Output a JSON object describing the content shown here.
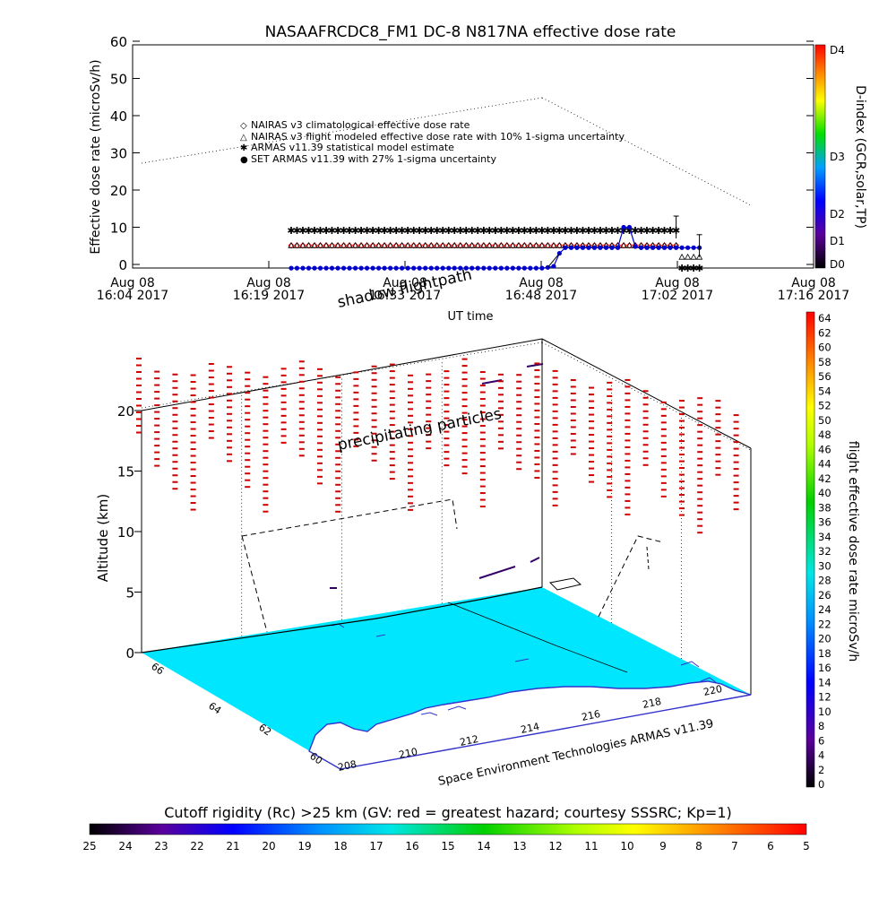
{
  "top_chart": {
    "title": "NASAAFRCDC8_FM1 DC-8   N817NA effective dose rate",
    "ylabel": "Effective dose rate (microSv/h)",
    "right_axis_label": "D-index (GCR,solar,TP)",
    "right_ticks": [
      "D4",
      "D3",
      "D2",
      "D1",
      "D0"
    ],
    "xlabel": "UT time",
    "x_ticks": [
      {
        "line1": "Aug 08",
        "line2": "16:04 2017"
      },
      {
        "line1": "Aug 08",
        "line2": "16:19 2017"
      },
      {
        "line1": "Aug 08",
        "line2": "16:33 2017"
      },
      {
        "line1": "Aug 08",
        "line2": "16:48 2017"
      },
      {
        "line1": "Aug 08",
        "line2": "17:02 2017"
      },
      {
        "line1": "Aug 08",
        "line2": "17:16 2017"
      }
    ],
    "legend": [
      {
        "symbol": "◇",
        "color": "#ff0000",
        "label": "NAIRAS v3 climatological effective dose rate"
      },
      {
        "symbol": "△",
        "color": "#000000",
        "label": "NAIRAS v3 flight modeled effective dose rate with 10% 1-sigma uncertainty"
      },
      {
        "symbol": "✱",
        "color": "#00cc00",
        "label": "ARMAS v11.39 statistical model estimate"
      },
      {
        "symbol": "●",
        "color": "#0000cc",
        "label": "SET ARMAS v11.39 with 27% 1-sigma uncertainty"
      }
    ],
    "overlay_text": "shadow flightpath"
  },
  "chart_data": [
    {
      "type": "scatter",
      "title": "NASAAFRCDC8_FM1 DC-8   N817NA effective dose rate",
      "xlabel": "UT time",
      "ylabel": "Effective dose rate (microSv/h)",
      "xlim": [
        "16:04",
        "17:16"
      ],
      "ylim": [
        0,
        60
      ],
      "y_ticks": [
        0,
        10,
        20,
        30,
        40,
        50,
        60
      ],
      "series": [
        {
          "name": "NAIRAS v3 climatological effective dose rate",
          "color": "#ff0000",
          "x": [
            16.77,
            17.38,
            18.0,
            18.62,
            19.23,
            19.85,
            20.47,
            21.08,
            21.7,
            22.32,
            22.93,
            23.55,
            24.17,
            24.78,
            25.4,
            26.02,
            26.63,
            27.25,
            27.87,
            28.48,
            29.1,
            29.72,
            30.33,
            30.95,
            31.57,
            32.18,
            32.8,
            33.42,
            34.03,
            34.65,
            35.27,
            35.88,
            36.5,
            37.12,
            37.73,
            38.35,
            38.97,
            39.58,
            40.2,
            40.82,
            41.43,
            42.05,
            42.67,
            43.28,
            43.9,
            44.52,
            45.13,
            45.75,
            46.37,
            46.98,
            47.6,
            48.22,
            48.83,
            49.45,
            50.07,
            50.68,
            51.3,
            51.92,
            52.53,
            53.15,
            53.77,
            54.38,
            55.0,
            55.62,
            56.23,
            56.85,
            57.47
          ],
          "y": [
            5.1,
            5.1,
            5.1,
            5.1,
            5.1,
            5.1,
            5.1,
            5.1,
            5.1,
            5.1,
            5.1,
            5.1,
            5.1,
            5.1,
            5.1,
            5.1,
            5.1,
            5.1,
            5.1,
            5.1,
            5.1,
            5.1,
            5.1,
            5.1,
            5.1,
            5.1,
            5.1,
            5.1,
            5.1,
            5.1,
            5.1,
            5.1,
            5.1,
            5.1,
            5.1,
            5.1,
            5.1,
            5.1,
            5.1,
            5.1,
            5.1,
            5.1,
            5.1,
            5.1,
            5.1,
            5.1,
            5.1,
            5.1,
            5.1,
            5.1,
            5.1,
            5.1,
            5.1,
            5.1,
            5.1,
            5.1,
            5.1,
            5.1,
            5.1,
            5.1,
            5.1,
            5.1,
            5.1,
            5.1,
            5.1,
            5.1,
            5.1
          ]
        },
        {
          "name": "NAIRAS v3 flight modeled effective dose rate with 10% 1-sigma uncertainty",
          "color": "#000000",
          "x": [
            16.77,
            17.38,
            18.0,
            18.62,
            19.23,
            19.85,
            20.47,
            21.08,
            21.7,
            22.32,
            22.93,
            23.55,
            24.17,
            24.78,
            25.4,
            26.02,
            26.63,
            27.25,
            27.87,
            28.48,
            29.1,
            29.72,
            30.33,
            30.95,
            31.57,
            32.18,
            32.8,
            33.42,
            34.03,
            34.65,
            35.27,
            35.88,
            36.5,
            37.12,
            37.73,
            38.35,
            38.97,
            39.58,
            40.2,
            40.82,
            41.43,
            42.05,
            42.67,
            43.28,
            43.9,
            44.52,
            45.13,
            45.75,
            46.37,
            46.98,
            47.6,
            48.22,
            48.83,
            49.45,
            50.07,
            50.68,
            51.3,
            51.92,
            52.53,
            53.15,
            53.77,
            54.38,
            55.0,
            55.62,
            56.23,
            56.85,
            57.47,
            58.08,
            58.7,
            59.32,
            59.93
          ],
          "y": [
            5.1,
            5.1,
            5.1,
            5.1,
            5.1,
            5.1,
            5.1,
            5.1,
            5.1,
            5.1,
            5.1,
            5.1,
            5.1,
            5.1,
            5.1,
            5.1,
            5.1,
            5.1,
            5.1,
            5.1,
            5.1,
            5.1,
            5.1,
            5.1,
            5.1,
            5.1,
            5.1,
            5.1,
            5.1,
            5.1,
            5.1,
            5.1,
            5.1,
            5.1,
            5.1,
            5.1,
            5.1,
            5.1,
            5.1,
            5.1,
            5.1,
            5.1,
            5.1,
            5.1,
            5.1,
            5.1,
            5.1,
            5.1,
            5.1,
            5.1,
            5.1,
            5.1,
            5.1,
            5.1,
            5.1,
            5.1,
            5.1,
            5.1,
            5.1,
            5.1,
            5.1,
            5.1,
            5.1,
            5.1,
            5.1,
            5.1,
            5.1,
            2.0,
            2.0,
            2.0,
            2.0
          ]
        },
        {
          "name": "ARMAS v11.39 statistical model estimate",
          "color": "#00cc00",
          "x": [
            16.77,
            17.38,
            18.0,
            18.62,
            19.23,
            19.85,
            20.47,
            21.08,
            21.7,
            22.32,
            22.93,
            23.55,
            24.17,
            24.78,
            25.4,
            26.02,
            26.63,
            27.25,
            27.87,
            28.48,
            29.1,
            29.72,
            30.33,
            30.95,
            31.57,
            32.18,
            32.8,
            33.42,
            34.03,
            34.65,
            35.27,
            35.88,
            36.5,
            37.12,
            37.73,
            38.35,
            38.97,
            39.58,
            40.2,
            40.82,
            41.43,
            42.05,
            42.67,
            43.28,
            43.9,
            44.52,
            45.13,
            45.75,
            46.37,
            46.98,
            47.6,
            48.22,
            48.83,
            49.45,
            50.07,
            50.68,
            51.3,
            51.92,
            52.53,
            53.15,
            53.77,
            54.38,
            55.0,
            55.62,
            56.23,
            56.85,
            57.47,
            58.08,
            58.7,
            59.32,
            59.93
          ],
          "y": [
            9.2,
            9.2,
            9.2,
            9.2,
            9.2,
            9.2,
            9.2,
            9.2,
            9.2,
            9.2,
            9.2,
            9.2,
            9.2,
            9.2,
            9.2,
            9.2,
            9.2,
            9.2,
            9.2,
            9.2,
            9.2,
            9.2,
            9.2,
            9.2,
            9.2,
            9.2,
            9.2,
            9.2,
            9.2,
            9.2,
            9.2,
            9.2,
            9.2,
            9.2,
            9.2,
            9.2,
            9.2,
            9.2,
            9.2,
            9.2,
            9.2,
            9.2,
            9.2,
            9.2,
            9.2,
            9.2,
            9.2,
            9.2,
            9.2,
            9.2,
            9.2,
            9.2,
            9.2,
            9.2,
            9.2,
            9.2,
            9.2,
            9.2,
            9.2,
            9.2,
            9.2,
            9.2,
            9.2,
            9.2,
            9.2,
            9.2,
            9.2,
            -1.0,
            -1.0,
            -1.0,
            -1.0
          ]
        },
        {
          "name": "SET ARMAS v11.39 with 27% 1-sigma uncertainty",
          "color": "#0000cc",
          "x": [
            16.77,
            17.38,
            18.0,
            18.62,
            19.23,
            19.85,
            20.47,
            21.08,
            21.7,
            22.32,
            22.93,
            23.55,
            24.17,
            24.78,
            25.4,
            26.02,
            26.63,
            27.25,
            27.87,
            28.48,
            29.1,
            29.72,
            30.33,
            30.95,
            31.57,
            32.18,
            32.8,
            33.42,
            34.03,
            34.65,
            35.27,
            35.88,
            36.5,
            37.12,
            37.73,
            38.35,
            38.97,
            39.58,
            40.2,
            40.82,
            41.43,
            42.05,
            42.67,
            43.28,
            43.9,
            44.52,
            45.13,
            45.75,
            46.37,
            46.98,
            47.6,
            48.22,
            48.83,
            49.45,
            50.07,
            50.68,
            51.3,
            51.92,
            52.53,
            53.15,
            53.77,
            54.38,
            55.0,
            55.62,
            56.23,
            56.85,
            57.47,
            58.08,
            58.7,
            59.32,
            59.93
          ],
          "y": [
            -1.0,
            -1.0,
            -1.0,
            -1.0,
            -1.0,
            -1.0,
            -1.0,
            -1.0,
            -1.0,
            -1.0,
            -1.0,
            -1.0,
            -1.0,
            -1.0,
            -1.0,
            -1.0,
            -1.0,
            -1.0,
            -1.0,
            -1.0,
            -1.0,
            -1.0,
            -1.0,
            -1.0,
            -1.0,
            -1.0,
            -1.0,
            -1.0,
            -1.0,
            -1.0,
            -1.0,
            -1.0,
            -1.0,
            -1.0,
            -1.0,
            -1.0,
            -1.0,
            -1.0,
            -1.0,
            -1.0,
            -1.0,
            -1.0,
            -1.0,
            -1.0,
            -0.8,
            -0.5,
            3.0,
            4.5,
            4.5,
            4.5,
            4.5,
            4.5,
            4.5,
            4.5,
            4.5,
            4.5,
            4.5,
            10.0,
            10.0,
            4.8,
            4.5,
            4.5,
            4.5,
            4.5,
            4.5,
            4.5,
            4.5,
            4.5,
            4.5,
            4.5,
            4.5
          ]
        }
      ]
    },
    {
      "type": "heatmap",
      "xlabel": "",
      "ylabel": "Altitude (km)",
      "zlim": [
        0,
        25
      ],
      "z_ticks": [
        0,
        5,
        10,
        15,
        20
      ],
      "lat_ticks": [
        "66",
        "64",
        "62",
        "60"
      ],
      "lon_ticks": [
        "208",
        "210",
        "212",
        "214",
        "216",
        "218",
        "220"
      ],
      "annotations": [
        "precipitating particles",
        "Space Environment Technologies ARMAS v11.39"
      ]
    }
  ],
  "right_colorbar": {
    "label": "flight effective dose rate microSv/h",
    "ticks": [
      "64",
      "62",
      "60",
      "58",
      "56",
      "54",
      "52",
      "50",
      "48",
      "46",
      "44",
      "42",
      "40",
      "38",
      "36",
      "34",
      "32",
      "30",
      "28",
      "26",
      "24",
      "22",
      "20",
      "18",
      "16",
      "14",
      "12",
      "10",
      "8",
      "6",
      "4",
      "2",
      "0"
    ]
  },
  "bottom_colorbar": {
    "title": "Cutoff rigidity (Rc) >25 km (GV: red = greatest hazard; courtesy SSSRC; Kp=1)",
    "ticks": [
      "25",
      "24",
      "23",
      "22",
      "21",
      "20",
      "19",
      "18",
      "17",
      "16",
      "15",
      "14",
      "13",
      "12",
      "11",
      "10",
      "9",
      "8",
      "7",
      "6",
      "5"
    ]
  },
  "colors": {
    "ocean": "#00e6ff",
    "land": "#ffffff",
    "coast": "#3333cc",
    "particles": "#cc0000",
    "accent_green": "#00cc00",
    "accent_blue": "#0000cc"
  }
}
